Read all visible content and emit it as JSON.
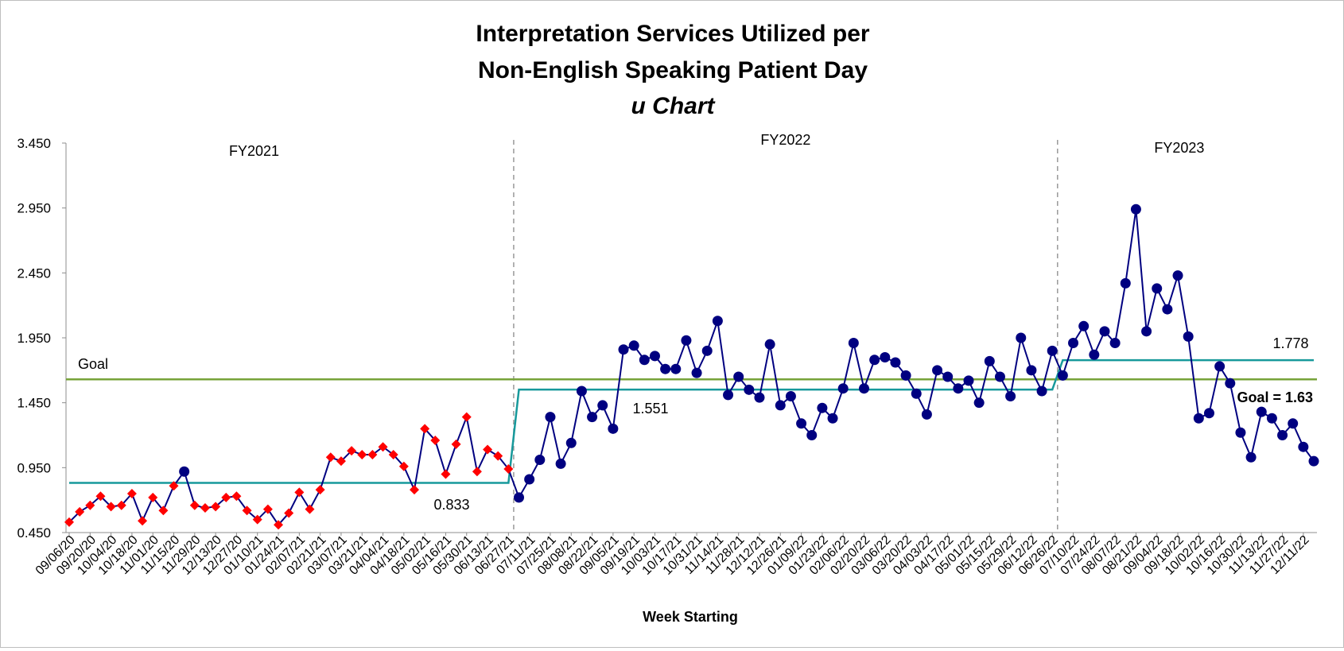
{
  "chart_data": {
    "type": "line",
    "title_lines": [
      "Interpretation Services Utilized per",
      "Non-English Speaking Patient Day",
      "u Chart"
    ],
    "xlabel": "Week Starting",
    "ylabel": "",
    "ylim": [
      0.45,
      3.45
    ],
    "yticks": [
      "0.450",
      "0.950",
      "1.450",
      "1.950",
      "2.450",
      "2.950",
      "3.450"
    ],
    "x_tick_labels": [
      "09/06/20",
      "09/20/20",
      "10/04/20",
      "10/18/20",
      "11/01/20",
      "11/15/20",
      "11/29/20",
      "12/13/20",
      "12/27/20",
      "01/10/21",
      "01/24/21",
      "02/07/21",
      "02/21/21",
      "03/07/21",
      "03/21/21",
      "04/04/21",
      "04/18/21",
      "05/02/21",
      "05/16/21",
      "05/30/21",
      "06/13/21",
      "06/27/21",
      "07/11/21",
      "07/25/21",
      "08/08/21",
      "08/22/21",
      "09/05/21",
      "09/19/21",
      "10/03/21",
      "10/17/21",
      "10/31/21",
      "11/14/21",
      "11/28/21",
      "12/12/21",
      "12/26/21",
      "01/09/22",
      "01/23/22",
      "02/06/22",
      "02/20/22",
      "03/06/22",
      "03/20/22",
      "04/03/22",
      "04/17/22",
      "05/01/22",
      "05/15/22",
      "05/29/22",
      "06/12/22",
      "06/26/22",
      "07/10/22",
      "07/24/22",
      "08/07/22",
      "08/21/22",
      "09/04/22",
      "09/18/22",
      "10/02/22",
      "10/16/22",
      "10/30/22",
      "11/13/22",
      "11/27/22",
      "12/11/22"
    ],
    "series": [
      {
        "values": [
          0.53,
          0.61,
          0.66,
          0.73,
          0.65,
          0.66,
          0.75,
          0.54,
          0.72,
          0.62,
          0.81,
          0.92,
          0.66,
          0.64,
          0.65,
          0.72,
          0.73,
          0.62,
          0.55,
          0.63,
          0.51,
          0.6,
          0.76,
          0.63,
          0.78,
          1.03,
          1.0,
          1.08,
          1.05,
          1.05,
          1.11,
          1.05,
          0.96,
          0.78,
          1.25,
          1.16,
          0.9,
          1.13,
          1.34,
          0.92,
          1.09,
          1.04,
          0.94,
          0.72,
          0.86,
          1.01,
          1.34,
          0.98,
          1.14,
          1.54,
          1.34,
          1.43,
          1.25,
          1.86,
          1.89,
          1.78,
          1.81,
          1.71,
          1.71,
          1.93,
          1.68,
          1.85,
          2.08,
          1.51,
          1.65,
          1.55,
          1.49,
          1.9,
          1.43,
          1.5,
          1.29,
          1.2,
          1.41,
          1.33,
          1.56,
          1.91,
          1.56,
          1.78,
          1.8,
          1.76,
          1.66,
          1.52,
          1.36,
          1.7,
          1.65,
          1.56,
          1.62,
          1.45,
          1.77,
          1.65,
          1.5,
          1.95,
          1.7,
          1.54,
          1.85,
          1.66,
          1.91,
          2.04,
          1.82,
          2.0,
          1.91,
          2.37,
          2.94,
          2.0,
          2.33,
          2.17,
          2.43,
          1.96,
          1.33,
          1.37,
          1.73,
          1.6,
          1.22,
          1.03,
          1.38,
          1.33,
          1.2,
          1.29,
          1.11,
          1.0
        ],
        "signal_points": [
          0,
          1,
          2,
          3,
          4,
          5,
          6,
          7,
          8,
          9,
          10,
          12,
          13,
          14,
          15,
          16,
          17,
          18,
          19,
          20,
          21,
          22,
          23,
          24,
          25,
          26,
          27,
          28,
          29,
          30,
          31,
          32,
          33,
          34,
          35,
          36,
          37,
          38,
          39,
          40,
          41,
          42
        ]
      }
    ],
    "center_line_segments": [
      {
        "from_index": 0,
        "to_index": 42,
        "value": 0.833,
        "label": "0.833"
      },
      {
        "from_index": 43,
        "to_index": 94,
        "value": 1.551,
        "label": "1.551"
      },
      {
        "from_index": 95,
        "to_index": 119,
        "value": 1.778,
        "label": "1.778"
      }
    ],
    "goal": {
      "value": 1.63,
      "label_left": "Goal",
      "label_right": "Goal = 1.63"
    },
    "period_dividers_after_index": [
      42,
      94
    ],
    "period_labels": [
      "FY2021",
      "FY2022",
      "FY2023"
    ],
    "colors": {
      "line": "#000080",
      "marker": "#000080",
      "signal": "#ff0000",
      "center_line": "#17999b",
      "goal": "#77a33a",
      "divider": "#999999"
    }
  }
}
